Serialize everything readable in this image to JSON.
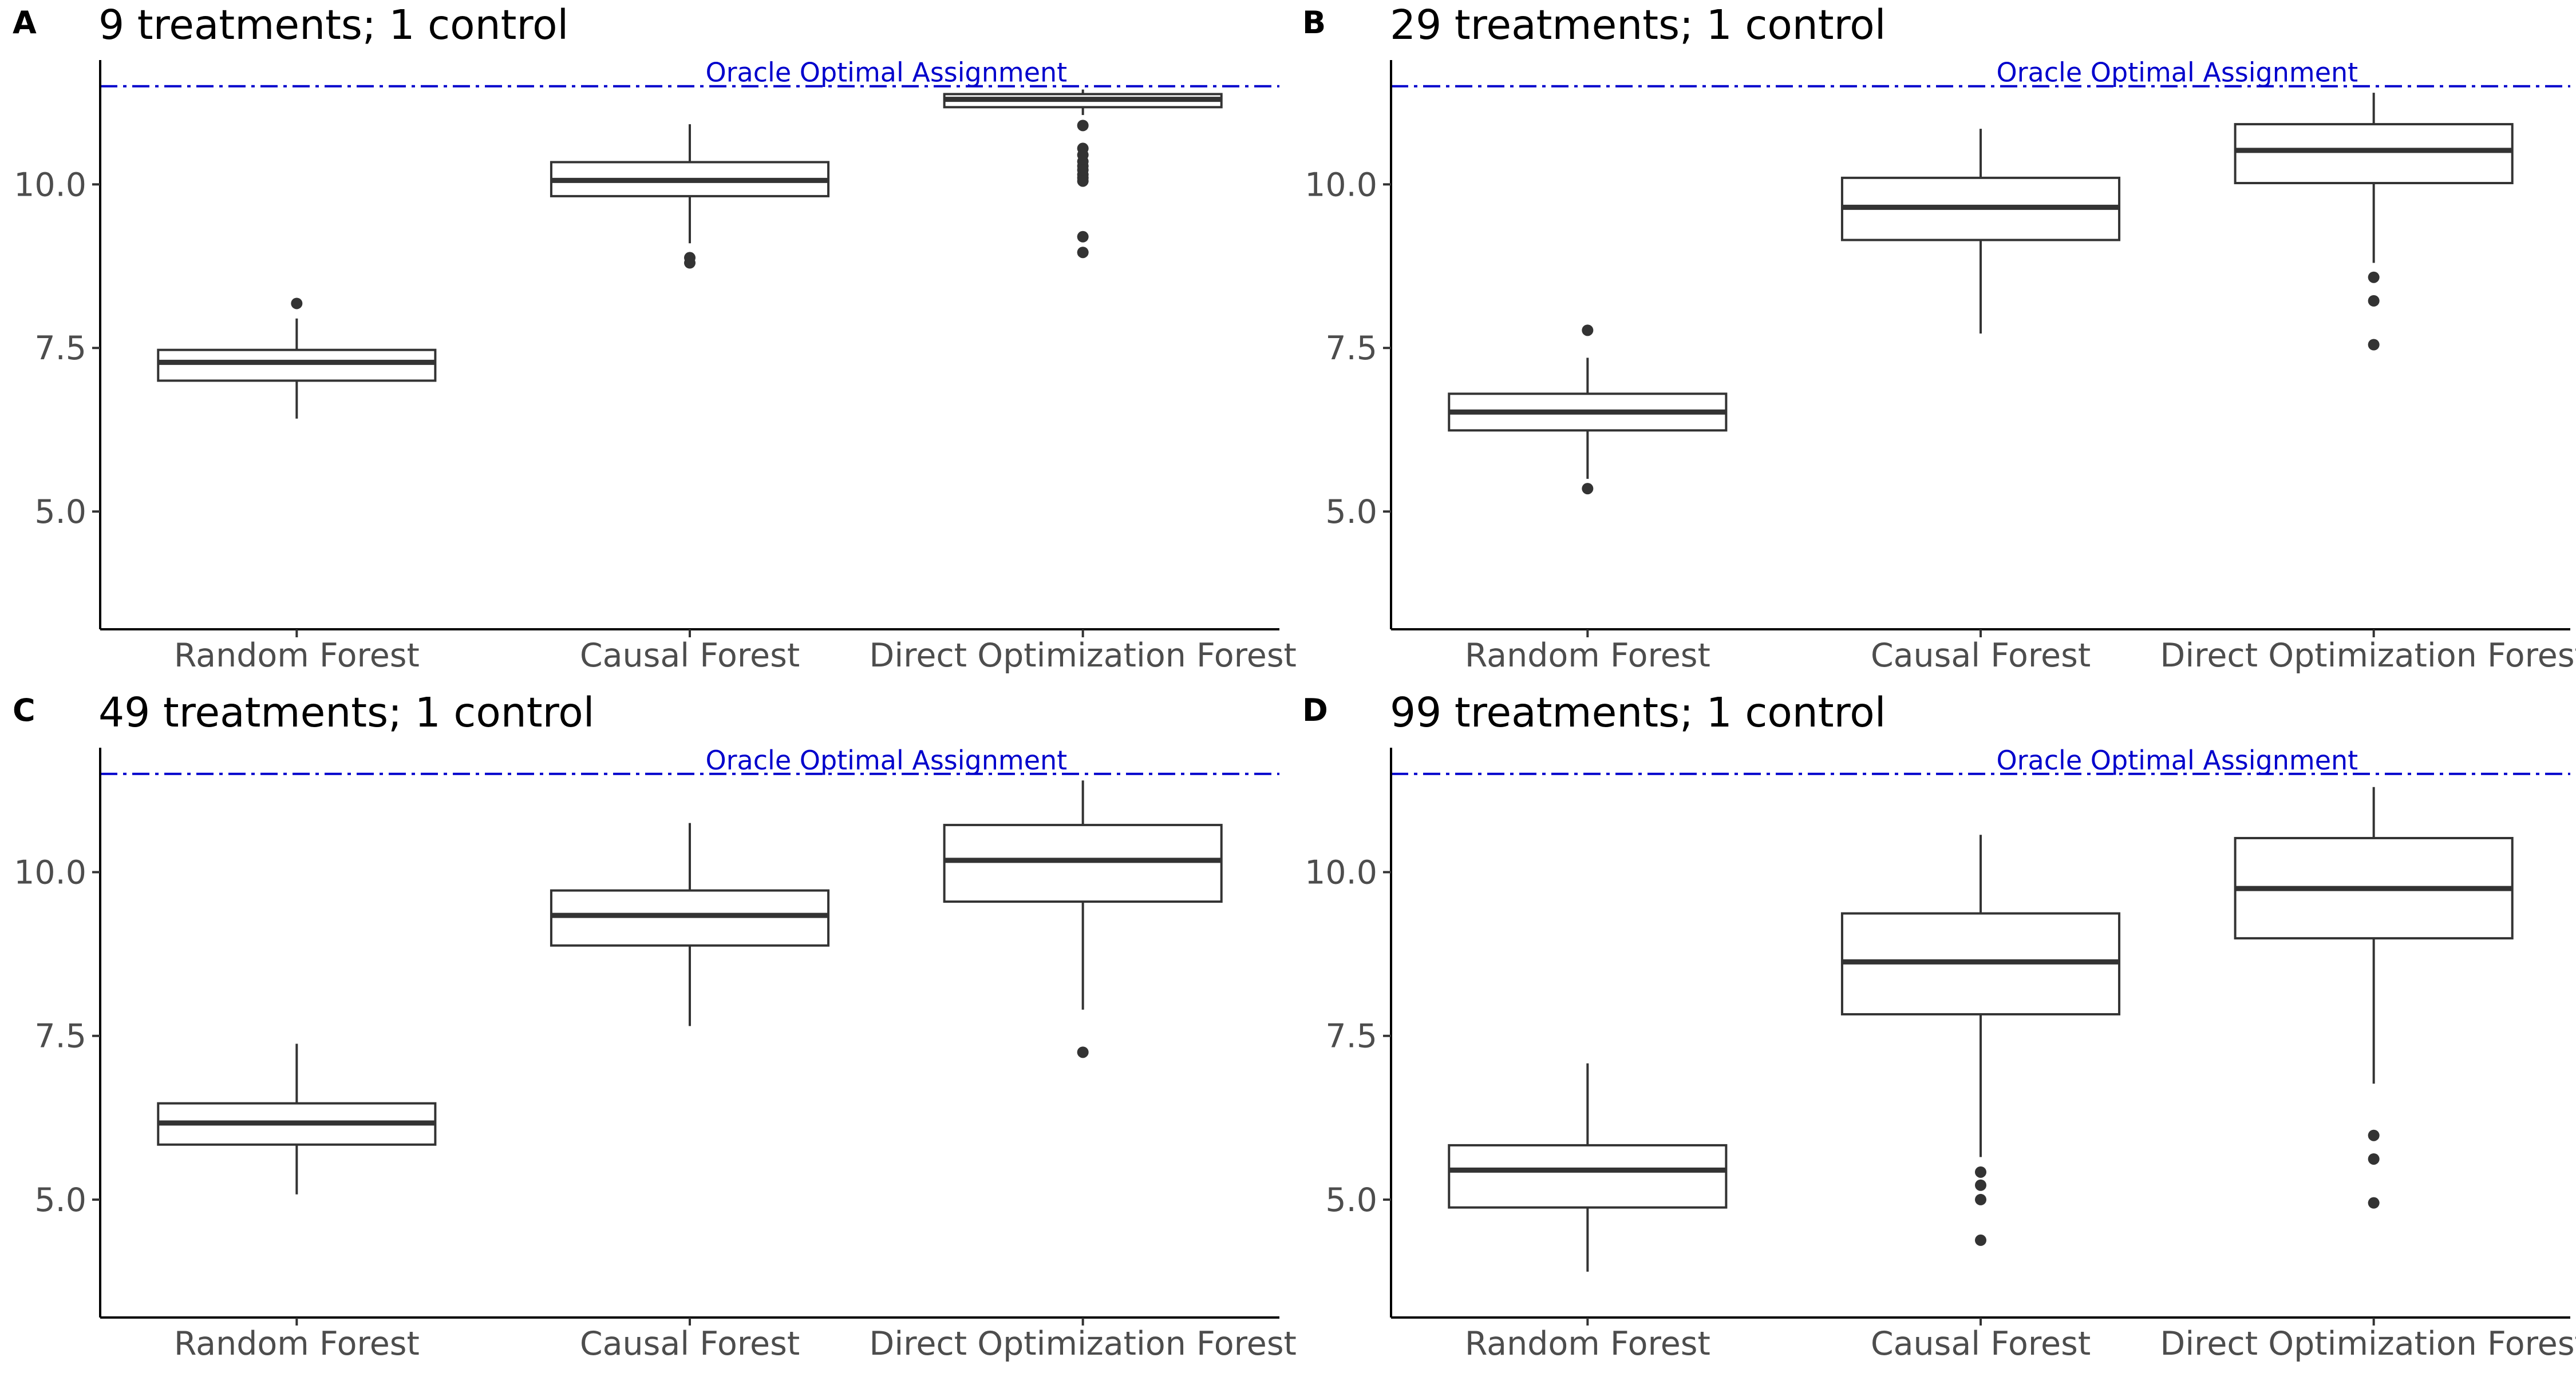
{
  "chart_data": [
    {
      "type": "boxplot",
      "panel": "A",
      "title": "9 treatments; 1 control",
      "categories": [
        "Random Forest",
        "Causal Forest",
        "Direct Optimization Forest"
      ],
      "ylim": [
        3.2,
        11.9
      ],
      "yticks": [
        "5.0",
        "7.5",
        "10.0"
      ],
      "reference_line": {
        "label": "Oracle Optimal Assignment",
        "value": 11.5,
        "color": "#0000cc"
      },
      "boxes": [
        {
          "name": "Random Forest",
          "lower_whisker": 6.42,
          "q1": 7.0,
          "median": 7.28,
          "q3": 7.47,
          "upper_whisker": 7.95,
          "outliers": [
            8.18
          ]
        },
        {
          "name": "Causal Forest",
          "lower_whisker": 9.1,
          "q1": 9.82,
          "median": 10.06,
          "q3": 10.34,
          "upper_whisker": 10.92,
          "outliers": [
            8.88,
            8.8
          ]
        },
        {
          "name": "Direct Optimization Forest",
          "lower_whisker": 11.06,
          "q1": 11.18,
          "median": 11.3,
          "q3": 11.38,
          "upper_whisker": 11.45,
          "outliers": [
            10.9,
            10.55,
            10.45,
            10.35,
            10.28,
            10.22,
            10.15,
            10.1,
            10.05,
            9.2,
            8.96
          ]
        }
      ]
    },
    {
      "type": "boxplot",
      "panel": "B",
      "title": "29 treatments; 1 control",
      "categories": [
        "Random Forest",
        "Causal Forest",
        "Direct Optimization Forest"
      ],
      "ylim": [
        3.2,
        11.9
      ],
      "yticks": [
        "5.0",
        "7.5",
        "10.0"
      ],
      "reference_line": {
        "label": "Oracle Optimal Assignment",
        "value": 11.5,
        "color": "#0000cc"
      },
      "boxes": [
        {
          "name": "Random Forest",
          "lower_whisker": 5.5,
          "q1": 6.24,
          "median": 6.52,
          "q3": 6.8,
          "upper_whisker": 7.35,
          "outliers": [
            7.77,
            5.35
          ]
        },
        {
          "name": "Causal Forest",
          "lower_whisker": 7.72,
          "q1": 9.15,
          "median": 9.65,
          "q3": 10.1,
          "upper_whisker": 10.85,
          "outliers": []
        },
        {
          "name": "Direct Optimization Forest",
          "lower_whisker": 8.8,
          "q1": 10.02,
          "median": 10.52,
          "q3": 10.92,
          "upper_whisker": 11.4,
          "outliers": [
            8.58,
            8.22,
            7.55
          ]
        }
      ]
    },
    {
      "type": "boxplot",
      "panel": "C",
      "title": "49 treatments; 1 control",
      "categories": [
        "Random Forest",
        "Causal Forest",
        "Direct Optimization Forest"
      ],
      "ylim": [
        3.2,
        11.9
      ],
      "yticks": [
        "5.0",
        "7.5",
        "10.0"
      ],
      "reference_line": {
        "label": "Oracle Optimal Assignment",
        "value": 11.5,
        "color": "#0000cc"
      },
      "boxes": [
        {
          "name": "Random Forest",
          "lower_whisker": 5.08,
          "q1": 5.84,
          "median": 6.17,
          "q3": 6.47,
          "upper_whisker": 7.38,
          "outliers": []
        },
        {
          "name": "Causal Forest",
          "lower_whisker": 7.65,
          "q1": 8.88,
          "median": 9.34,
          "q3": 9.72,
          "upper_whisker": 10.75,
          "outliers": []
        },
        {
          "name": "Direct Optimization Forest",
          "lower_whisker": 7.9,
          "q1": 9.55,
          "median": 10.18,
          "q3": 10.72,
          "upper_whisker": 11.4,
          "outliers": [
            7.25
          ]
        }
      ]
    },
    {
      "type": "boxplot",
      "panel": "D",
      "title": "99 treatments; 1 control",
      "categories": [
        "Random Forest",
        "Causal Forest",
        "Direct Optimization Forest"
      ],
      "ylim": [
        3.2,
        11.9
      ],
      "yticks": [
        "5.0",
        "7.5",
        "10.0"
      ],
      "reference_line": {
        "label": "Oracle Optimal Assignment",
        "value": 11.5,
        "color": "#0000cc"
      },
      "boxes": [
        {
          "name": "Random Forest",
          "lower_whisker": 3.9,
          "q1": 4.88,
          "median": 5.45,
          "q3": 5.83,
          "upper_whisker": 7.08,
          "outliers": []
        },
        {
          "name": "Causal Forest",
          "lower_whisker": 5.65,
          "q1": 7.83,
          "median": 8.63,
          "q3": 9.37,
          "upper_whisker": 10.57,
          "outliers": [
            5.42,
            5.22,
            5.0,
            4.38
          ]
        },
        {
          "name": "Direct Optimization Forest",
          "lower_whisker": 6.77,
          "q1": 8.99,
          "median": 9.75,
          "q3": 10.52,
          "upper_whisker": 11.3,
          "outliers": [
            5.98,
            5.62,
            4.95
          ]
        }
      ]
    }
  ]
}
